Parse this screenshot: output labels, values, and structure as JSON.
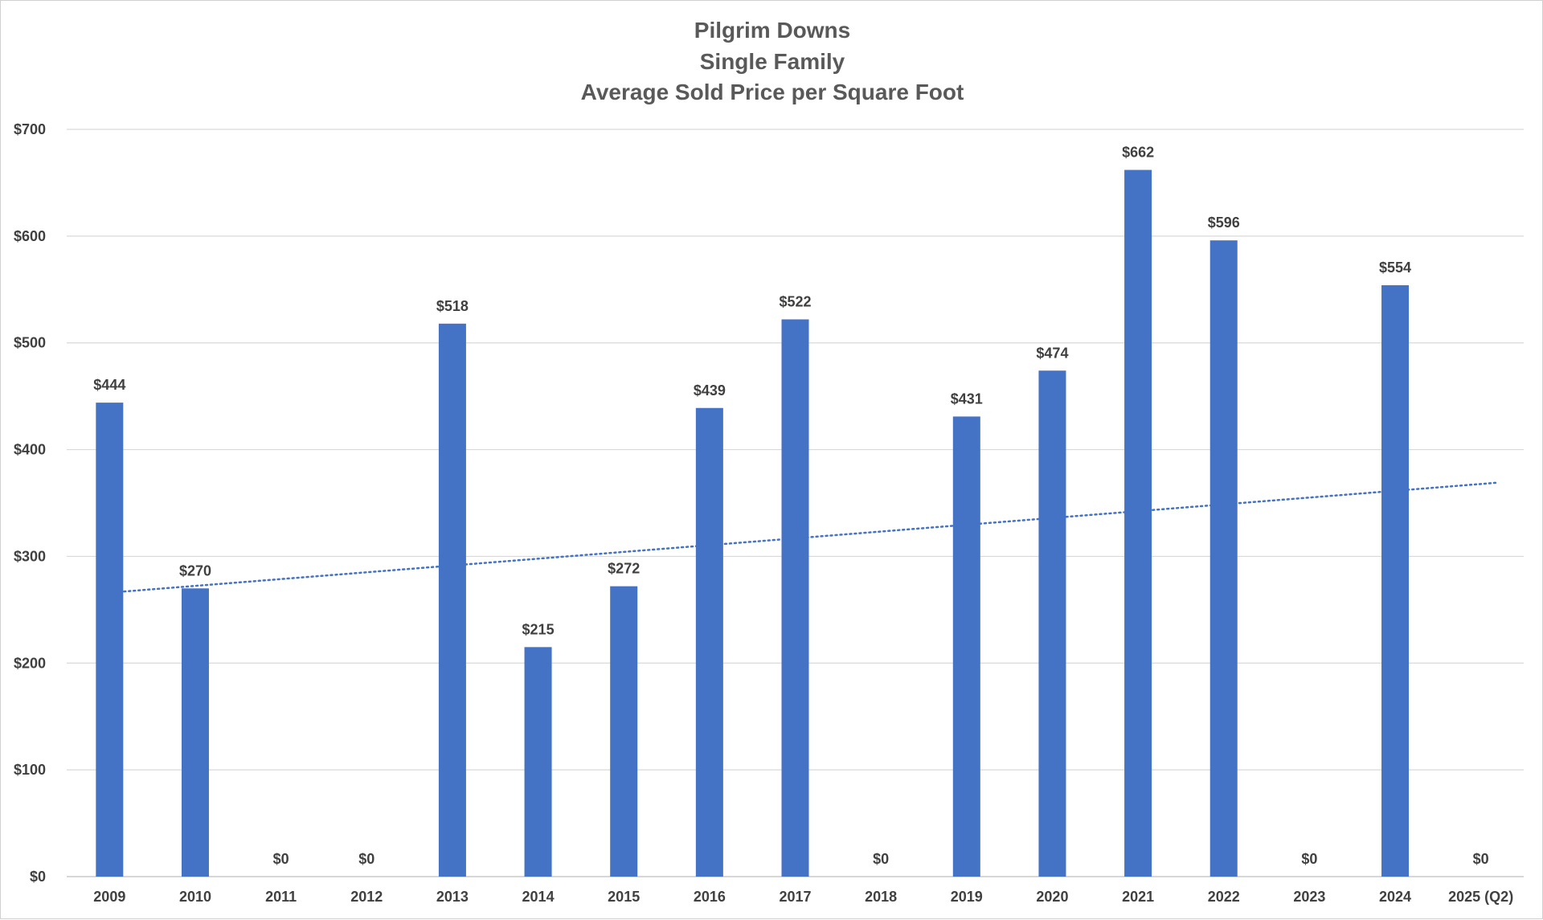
{
  "chart_data": {
    "type": "bar",
    "title": [
      "Pilgrim Downs",
      "Single Family",
      "Average Sold Price per Square Foot"
    ],
    "categories": [
      "2009",
      "2010",
      "2011",
      "2012",
      "2013",
      "2014",
      "2015",
      "2016",
      "2017",
      "2018",
      "2019",
      "2020",
      "2021",
      "2022",
      "2023",
      "2024",
      "2025 (Q2)"
    ],
    "values": [
      444,
      270,
      0,
      0,
      518,
      215,
      272,
      439,
      522,
      0,
      431,
      474,
      662,
      596,
      0,
      554,
      0
    ],
    "data_labels": [
      "$444",
      "$270",
      "$0",
      "$0",
      "$518",
      "$215",
      "$272",
      "$439",
      "$522",
      "$0",
      "$431",
      "$474",
      "$662",
      "$596",
      "$0",
      "$554",
      "$0"
    ],
    "y_ticks": [
      "$0",
      "$100",
      "$200",
      "$300",
      "$400",
      "$500",
      "$600",
      "$700"
    ],
    "ylim": [
      0,
      700
    ],
    "grid": true,
    "legend": "none",
    "trendline": {
      "type": "linear",
      "style": "dotted",
      "start_value": 266,
      "end_value": 369
    },
    "colors": {
      "bar": "#4472C4",
      "trendline": "#4472C4",
      "gridline": "#d9d9d9",
      "text": "#404040",
      "title": "#595959"
    }
  }
}
